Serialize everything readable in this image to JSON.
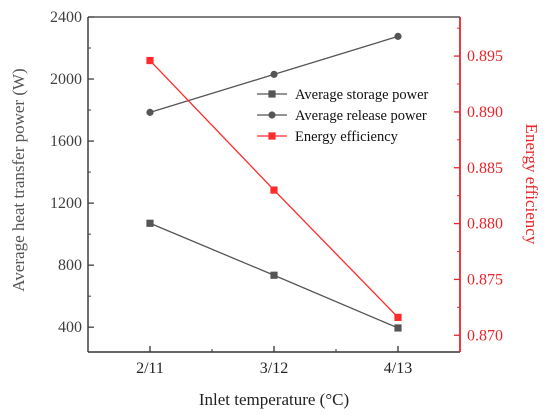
{
  "chart_data": {
    "type": "line",
    "categories": [
      "2/11",
      "3/12",
      "4/13"
    ],
    "xlabel": "Inlet temperature (°C)",
    "y_left": {
      "label": "Average heat transfer power (W)",
      "ylim": [
        240,
        2400
      ],
      "ticks": [
        400,
        800,
        1200,
        1600,
        2000,
        2400
      ]
    },
    "y_right": {
      "label": "Energy efficiency",
      "ylim": [
        0.8685,
        0.8985
      ],
      "ticks": [
        0.87,
        0.875,
        0.88,
        0.885,
        0.89,
        0.895
      ],
      "tick_labels": [
        "0.870",
        "0.875",
        "0.880",
        "0.885",
        "0.890",
        "0.895"
      ]
    },
    "series": [
      {
        "name": "Average storage power",
        "axis": "left",
        "marker": "square",
        "color": "#555555",
        "values": [
          1070,
          735,
          395
        ]
      },
      {
        "name": "Average release power",
        "axis": "left",
        "marker": "circle",
        "color": "#555555",
        "values": [
          1785,
          2030,
          2275
        ]
      },
      {
        "name": "Energy efficiency",
        "axis": "right",
        "marker": "square",
        "color": "#ff2a2a",
        "values": [
          0.8946,
          0.883,
          0.8716
        ]
      }
    ],
    "legend": {
      "placement": "top-right"
    },
    "colors": {
      "left_axis": "#3f3f3f",
      "right_axis": "#e8262b"
    }
  }
}
